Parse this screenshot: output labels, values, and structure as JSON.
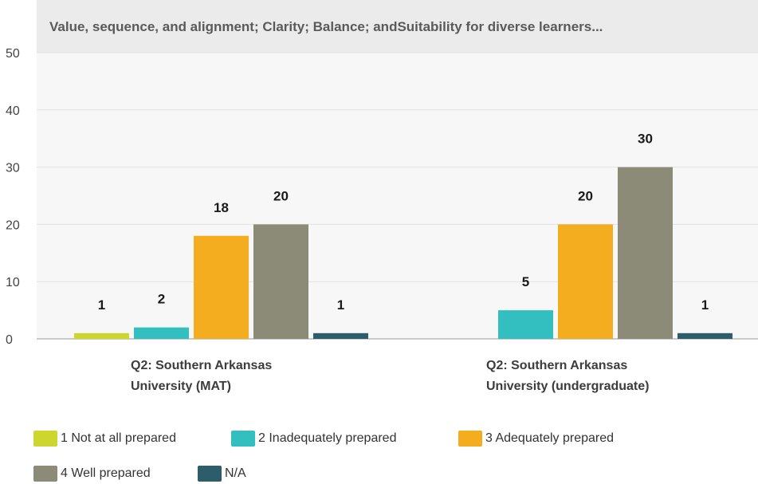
{
  "chart_data": {
    "type": "bar",
    "title": "Value, sequence, and alignment; Clarity; Balance; andSuitability for diverse learners...",
    "categories": [
      [
        "Q2: Southern Arkansas",
        "University (MAT)"
      ],
      [
        "Q2: Southern Arkansas",
        "University (undergraduate)"
      ]
    ],
    "ylim": [
      0,
      50
    ],
    "yticks": [
      0,
      10,
      20,
      30,
      40,
      50
    ],
    "grid": true,
    "legend_position": "bottom",
    "series": [
      {
        "name": "1 Not at all prepared",
        "color": "#cdd62e",
        "values": [
          1,
          null
        ]
      },
      {
        "name": "2 Inadequately prepared",
        "color": "#33bfbf",
        "values": [
          2,
          5
        ]
      },
      {
        "name": "3 Adequately prepared",
        "color": "#f5ad20",
        "values": [
          18,
          20
        ]
      },
      {
        "name": "4 Well prepared",
        "color": "#8b8b78",
        "values": [
          20,
          30
        ]
      },
      {
        "name": "N/A",
        "color": "#2d5d6b",
        "values": [
          1,
          1
        ]
      }
    ]
  }
}
